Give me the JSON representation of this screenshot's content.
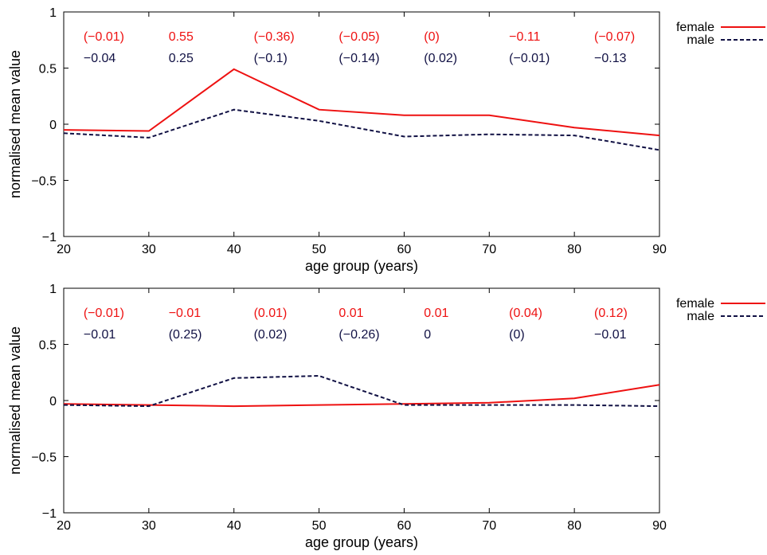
{
  "chart_data": [
    {
      "type": "line",
      "x": [
        20,
        30,
        40,
        50,
        60,
        70,
        80,
        90
      ],
      "xlabel": "age group (years)",
      "ylabel": "normalised mean value",
      "xlim": [
        20,
        90
      ],
      "ylim": [
        -1,
        1
      ],
      "x_ticks": [
        "20",
        "30",
        "40",
        "50",
        "60",
        "70",
        "80",
        "90"
      ],
      "y_ticks": [
        "1",
        "0.5",
        "0",
        "−0.5",
        "−1"
      ],
      "legend_position": "outside-top-right",
      "series": [
        {
          "name": "female",
          "color": "#ee1111",
          "style": "solid",
          "values": [
            -0.05,
            -0.06,
            0.49,
            0.13,
            0.08,
            0.08,
            -0.03,
            -0.1
          ],
          "annotations": [
            "(−0.01)",
            "0.55",
            "(−0.36)",
            "(−0.05)",
            "(0)",
            "−0.11",
            "(−0.07)"
          ]
        },
        {
          "name": "male",
          "color": "#111144",
          "style": "dashed",
          "values": [
            -0.08,
            -0.12,
            0.13,
            0.03,
            -0.11,
            -0.09,
            -0.1,
            -0.23
          ],
          "annotations": [
            "−0.04",
            "0.25",
            "(−0.1)",
            "(−0.14)",
            "(0.02)",
            "(−0.01)",
            "−0.13"
          ]
        }
      ],
      "annotation_x": [
        30,
        40,
        50,
        60,
        70,
        80,
        90
      ]
    },
    {
      "type": "line",
      "x": [
        20,
        30,
        40,
        50,
        60,
        70,
        80,
        90
      ],
      "xlabel": "age group (years)",
      "ylabel": "normalised mean value",
      "xlim": [
        20,
        90
      ],
      "ylim": [
        -1,
        1
      ],
      "x_ticks": [
        "20",
        "30",
        "40",
        "50",
        "60",
        "70",
        "80",
        "90"
      ],
      "y_ticks": [
        "1",
        "0.5",
        "0",
        "−0.5",
        "−1"
      ],
      "legend_position": "outside-top-right",
      "series": [
        {
          "name": "female",
          "color": "#ee1111",
          "style": "solid",
          "values": [
            -0.03,
            -0.04,
            -0.05,
            -0.04,
            -0.03,
            -0.02,
            0.02,
            0.14
          ],
          "annotations": [
            "(−0.01)",
            "−0.01",
            "(0.01)",
            "0.01",
            "0.01",
            "(0.04)",
            "(0.12)"
          ]
        },
        {
          "name": "male",
          "color": "#111144",
          "style": "dashed",
          "values": [
            -0.04,
            -0.05,
            0.2,
            0.22,
            -0.04,
            -0.04,
            -0.04,
            -0.05
          ],
          "annotations": [
            "−0.01",
            "(0.25)",
            "(0.02)",
            "(−0.26)",
            "0",
            "(0)",
            "−0.01"
          ]
        }
      ],
      "annotation_x": [
        30,
        40,
        50,
        60,
        70,
        80,
        90
      ]
    }
  ]
}
